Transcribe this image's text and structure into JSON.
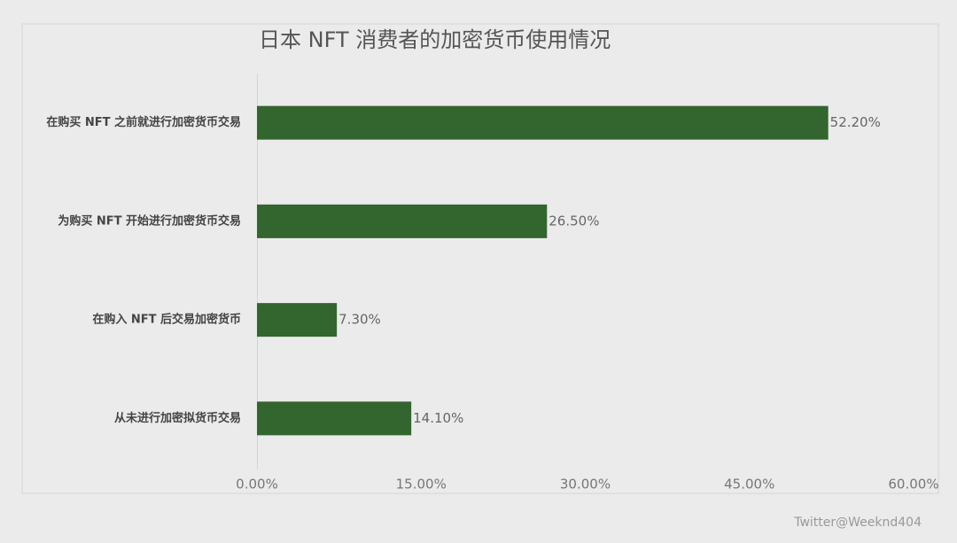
{
  "chart_data": {
    "type": "bar",
    "orientation": "horizontal",
    "title": "日本 NFT 消费者的加密货币使用情况",
    "categories": [
      "在购买 NFT 之前就进行加密货币交易",
      "为购买 NFT 开始进行加密货币交易",
      "在购入 NFT 后交易加密货币",
      "从未进行加密拟货币交易"
    ],
    "values": [
      52.2,
      26.5,
      7.3,
      14.1
    ],
    "value_labels": [
      "52.20%",
      "26.50%",
      "7.30%",
      "14.10%"
    ],
    "color": "#33652e",
    "xlim": [
      0,
      60
    ],
    "xticks": [
      {
        "value": 0,
        "label": "0.00%"
      },
      {
        "value": 15,
        "label": "15.00%"
      },
      {
        "value": 30,
        "label": "30.00%"
      },
      {
        "value": 45,
        "label": "45.00%"
      },
      {
        "value": 60,
        "label": "60.00%"
      }
    ],
    "grid": false,
    "watermark": "Twitter@Weeknd404"
  }
}
